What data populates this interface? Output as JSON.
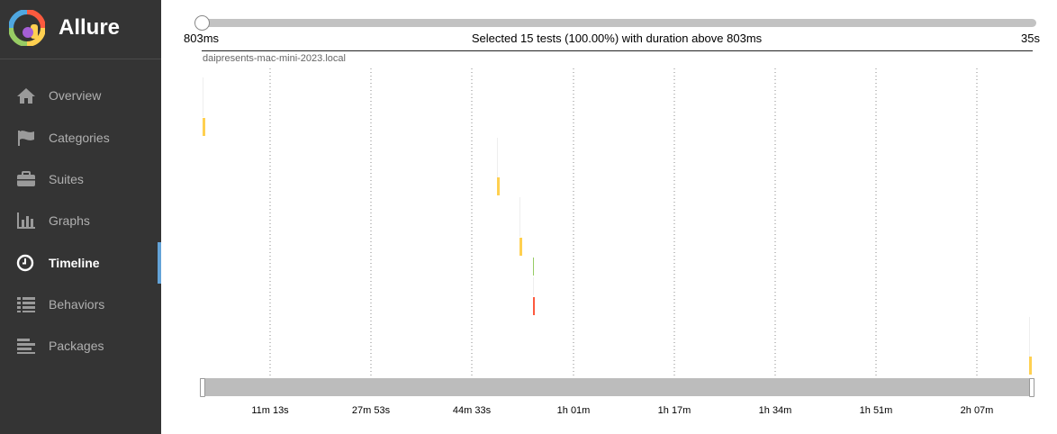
{
  "app": {
    "title": "Allure"
  },
  "sidebar": {
    "items": [
      {
        "label": "Overview",
        "icon": "home-icon",
        "active": false
      },
      {
        "label": "Categories",
        "icon": "flag-icon",
        "active": false
      },
      {
        "label": "Suites",
        "icon": "briefcase-icon",
        "active": false
      },
      {
        "label": "Graphs",
        "icon": "bar-chart-icon",
        "active": false
      },
      {
        "label": "Timeline",
        "icon": "clock-icon",
        "active": true
      },
      {
        "label": "Behaviors",
        "icon": "list-icon",
        "active": false
      },
      {
        "label": "Packages",
        "icon": "align-left-icon",
        "active": false
      }
    ]
  },
  "timeline": {
    "duration_min": "803ms",
    "duration_max": "35s",
    "selection_text": "Selected 15 tests (100.00%) with duration above 803ms",
    "host": "daipresents-mac-mini-2023.local",
    "ticks": [
      "11m 13s",
      "27m 53s",
      "44m 33s",
      "1h 01m",
      "1h 17m",
      "1h 34m",
      "1h 51m",
      "2h 07m"
    ]
  },
  "colors": {
    "sidebar_bg": "#343434",
    "active_indicator": "#63a3d8",
    "passed": "#97cc64",
    "failed": "#fd5a3e",
    "broken": "#ffd050"
  }
}
